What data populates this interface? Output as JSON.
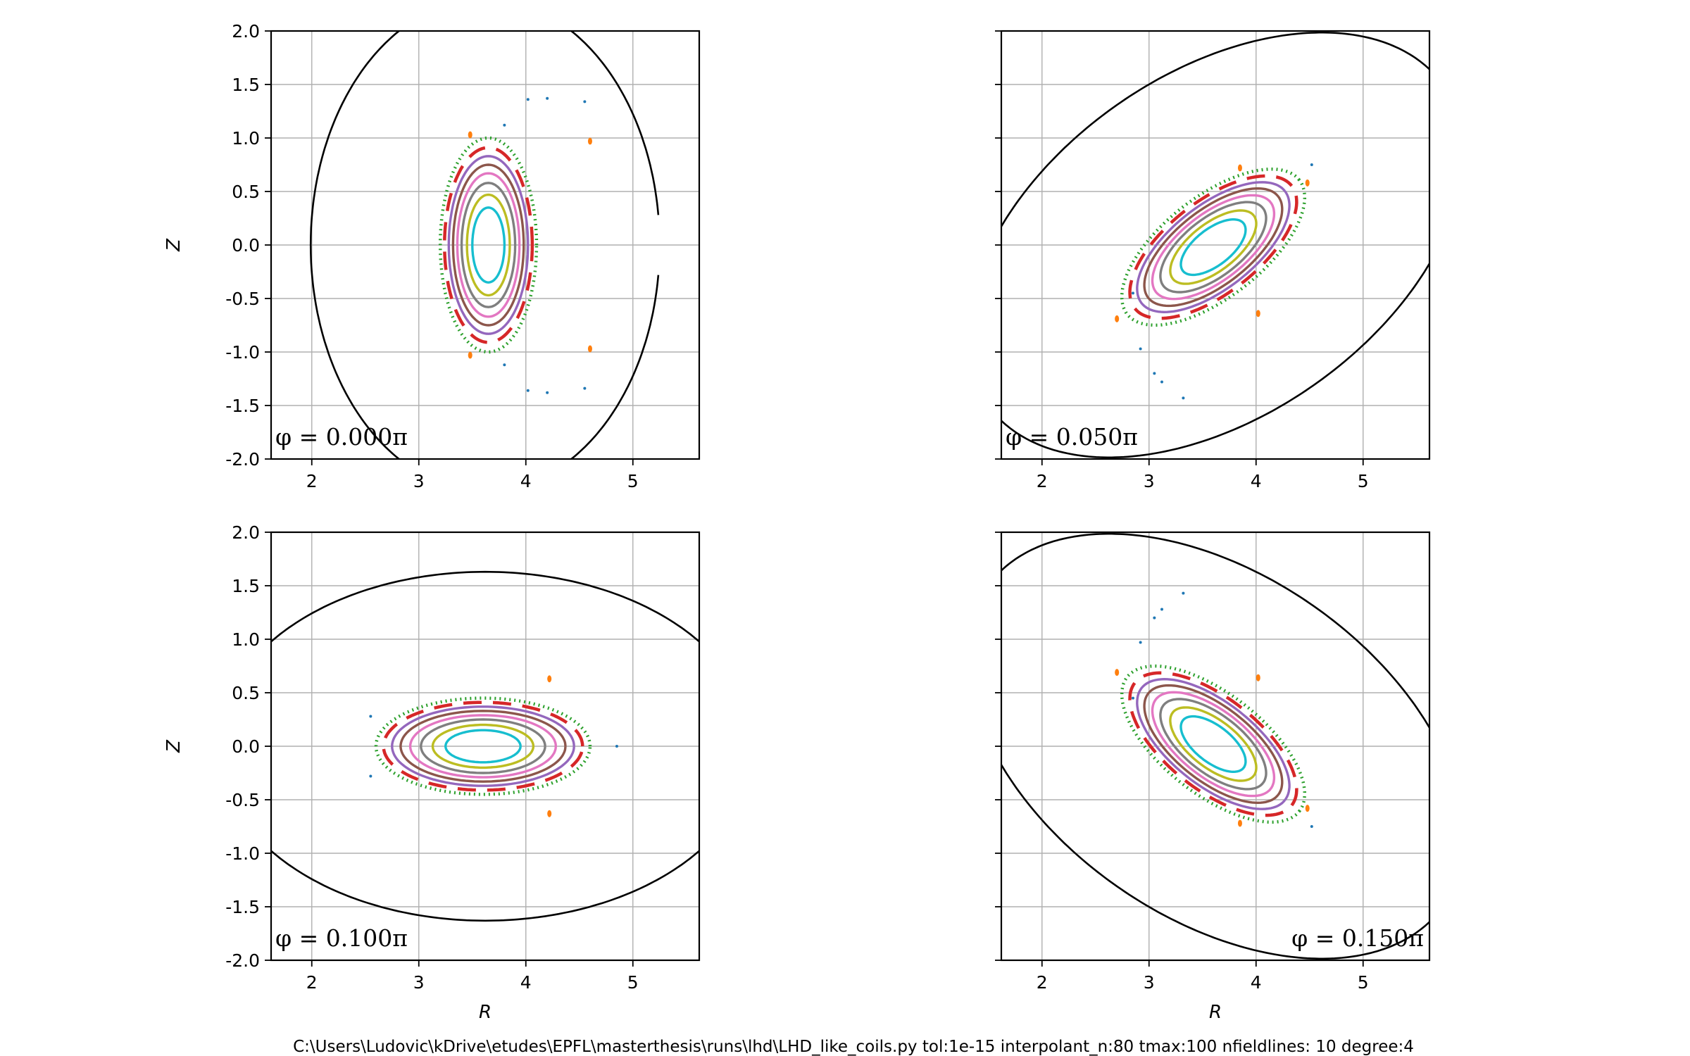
{
  "footer_text": "C:\\Users\\Ludovic\\kDrive\\etudes\\EPFL\\masterthesis\\runs\\lhd\\LHD_like_coils.py  tol:1e-15  interpolant_n:80  tmax:100  nfieldlines: 10 degree:4",
  "colors": {
    "wall": "#000000",
    "grid": "#b0b0b0",
    "series": [
      "#17becf",
      "#bcbd22",
      "#7f7f7f",
      "#e377c2",
      "#8c564b",
      "#9467bd",
      "#d62728",
      "#2ca02c",
      "#ff7f0e",
      "#1f77b4"
    ]
  },
  "chart_data": [
    {
      "type": "scatter",
      "label": "φ = 0.000π",
      "label_position": "bottom-left",
      "xlabel": "",
      "ylabel": "Z",
      "xlim": [
        1.62,
        5.62
      ],
      "ylim": [
        -2.0,
        2.0
      ],
      "xticks": [
        2,
        3,
        4,
        5
      ],
      "yticks": [
        -2.0,
        -1.5,
        -1.0,
        -0.5,
        0.0,
        0.5,
        1.0,
        1.5,
        2.0
      ],
      "grid": true,
      "wall": {
        "center_R": 3.62,
        "center_Z": 0.0,
        "a": 1.63,
        "b": 2.3,
        "tilt_deg": 0,
        "gap": [
          -0.25,
          0.25
        ]
      },
      "surfaces": {
        "center_R": 3.65,
        "center_Z": 0.0,
        "a": [
          0.15,
          0.2,
          0.25,
          0.29,
          0.33,
          0.37,
          0.41,
          0.45
        ],
        "b": [
          0.35,
          0.47,
          0.58,
          0.67,
          0.75,
          0.83,
          0.91,
          1.0
        ],
        "tilt_deg": 0
      },
      "islands": [
        {
          "R": 4.6,
          "Z": 0.97,
          "series": 8
        },
        {
          "R": 4.6,
          "Z": -0.97,
          "series": 8
        },
        {
          "R": 3.48,
          "Z": 1.03,
          "series": 8
        },
        {
          "R": 3.48,
          "Z": -1.03,
          "series": 8
        }
      ],
      "outer_points": [
        {
          "R": 4.02,
          "Z": 1.36
        },
        {
          "R": 4.2,
          "Z": 1.37
        },
        {
          "R": 4.55,
          "Z": 1.34
        },
        {
          "R": 4.02,
          "Z": -1.36
        },
        {
          "R": 4.2,
          "Z": -1.38
        },
        {
          "R": 4.55,
          "Z": -1.34
        },
        {
          "R": 3.8,
          "Z": 1.12
        },
        {
          "R": 3.8,
          "Z": -1.12
        }
      ]
    },
    {
      "type": "scatter",
      "label": "φ = 0.050π",
      "label_position": "bottom-left",
      "xlabel": "",
      "ylabel": "",
      "xlim": [
        1.62,
        5.62
      ],
      "ylim": [
        -2.0,
        2.0
      ],
      "xticks": [
        2,
        3,
        4,
        5
      ],
      "yticks": [
        -2.0,
        -1.5,
        -1.0,
        -0.5,
        0.0,
        0.5,
        1.0,
        1.5,
        2.0
      ],
      "grid": true,
      "wall": {
        "center_R": 3.62,
        "center_Z": 0.0,
        "a": 2.6,
        "b": 1.6,
        "tilt_deg": 35,
        "gap": null
      },
      "surfaces": {
        "center_R": 3.6,
        "center_Z": -0.02,
        "a": [
          0.36,
          0.48,
          0.59,
          0.68,
          0.77,
          0.85,
          0.93,
          1.02
        ],
        "b": [
          0.17,
          0.22,
          0.27,
          0.31,
          0.35,
          0.39,
          0.43,
          0.47
        ],
        "tilt_deg": 38
      },
      "islands": [
        {
          "R": 4.48,
          "Z": 0.58,
          "series": 8
        },
        {
          "R": 2.7,
          "Z": -0.69,
          "series": 8
        },
        {
          "R": 4.02,
          "Z": -0.64,
          "series": 8
        },
        {
          "R": 3.85,
          "Z": 0.72,
          "series": 8
        }
      ],
      "outer_points": [
        {
          "R": 2.92,
          "Z": -0.97
        },
        {
          "R": 3.05,
          "Z": -1.2
        },
        {
          "R": 3.12,
          "Z": -1.28
        },
        {
          "R": 3.32,
          "Z": -1.43
        },
        {
          "R": 4.52,
          "Z": 0.75
        },
        {
          "R": 2.85,
          "Z": -0.45
        }
      ]
    },
    {
      "type": "scatter",
      "label": "φ = 0.100π",
      "label_position": "bottom-left",
      "xlabel": "R",
      "ylabel": "Z",
      "xlim": [
        1.62,
        5.62
      ],
      "ylim": [
        -2.0,
        2.0
      ],
      "xticks": [
        2,
        3,
        4,
        5
      ],
      "yticks": [
        -2.0,
        -1.5,
        -1.0,
        -0.5,
        0.0,
        0.5,
        1.0,
        1.5,
        2.0
      ],
      "grid": true,
      "wall": {
        "center_R": 3.62,
        "center_Z": 0.0,
        "a": 2.5,
        "b": 1.63,
        "tilt_deg": 0,
        "gap": null
      },
      "surfaces": {
        "center_R": 3.6,
        "center_Z": 0.0,
        "a": [
          0.35,
          0.47,
          0.58,
          0.68,
          0.77,
          0.85,
          0.93,
          1.0
        ],
        "b": [
          0.15,
          0.2,
          0.25,
          0.29,
          0.33,
          0.37,
          0.41,
          0.45
        ],
        "tilt_deg": 0
      },
      "islands": [
        {
          "R": 4.22,
          "Z": 0.63,
          "series": 8
        },
        {
          "R": 4.22,
          "Z": -0.63,
          "series": 8
        }
      ],
      "outer_points": [
        {
          "R": 2.55,
          "Z": 0.28
        },
        {
          "R": 2.55,
          "Z": -0.28
        },
        {
          "R": 4.85,
          "Z": 0.0
        }
      ]
    },
    {
      "type": "scatter",
      "label": "φ = 0.150π",
      "label_position": "bottom-right",
      "xlabel": "R",
      "ylabel": "",
      "xlim": [
        1.62,
        5.62
      ],
      "ylim": [
        -2.0,
        2.0
      ],
      "xticks": [
        2,
        3,
        4,
        5
      ],
      "yticks": [
        -2.0,
        -1.5,
        -1.0,
        -0.5,
        0.0,
        0.5,
        1.0,
        1.5,
        2.0
      ],
      "grid": true,
      "wall": {
        "center_R": 3.62,
        "center_Z": 0.0,
        "a": 2.6,
        "b": 1.6,
        "tilt_deg": -35,
        "gap": null
      },
      "surfaces": {
        "center_R": 3.6,
        "center_Z": 0.02,
        "a": [
          0.36,
          0.48,
          0.59,
          0.68,
          0.77,
          0.85,
          0.93,
          1.02
        ],
        "b": [
          0.17,
          0.22,
          0.27,
          0.31,
          0.35,
          0.39,
          0.43,
          0.47
        ],
        "tilt_deg": -38
      },
      "islands": [
        {
          "R": 4.48,
          "Z": -0.58,
          "series": 8
        },
        {
          "R": 2.7,
          "Z": 0.69,
          "series": 8
        },
        {
          "R": 4.02,
          "Z": 0.64,
          "series": 8
        },
        {
          "R": 3.85,
          "Z": -0.72,
          "series": 8
        }
      ],
      "outer_points": [
        {
          "R": 2.92,
          "Z": 0.97
        },
        {
          "R": 3.05,
          "Z": 1.2
        },
        {
          "R": 3.12,
          "Z": 1.28
        },
        {
          "R": 3.32,
          "Z": 1.43
        },
        {
          "R": 4.52,
          "Z": -0.75
        },
        {
          "R": 2.85,
          "Z": 0.45
        }
      ]
    }
  ]
}
